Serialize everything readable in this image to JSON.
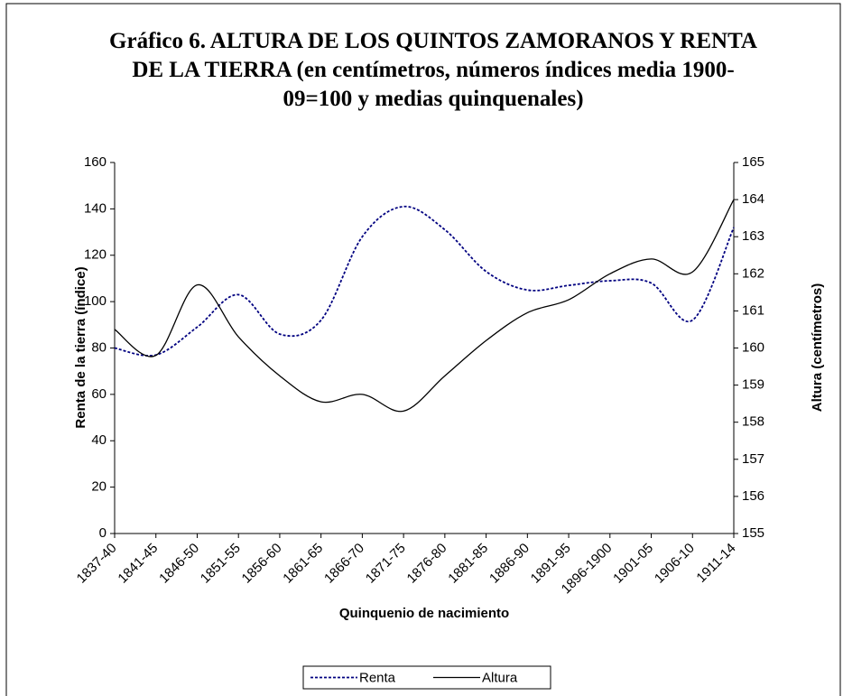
{
  "chart_data": {
    "type": "line",
    "title": "Gráfico 6. ALTURA DE LOS QUINTOS ZAMORANOS Y RENTA DE LA TIERRA (en centímetros, números índices media 1900-09=100 y medias quinquenales)",
    "xlabel": "Quinquenio de nacimiento",
    "ylabel": "Renta de la tierra (índice)",
    "y2label": "Altura (centímetros)",
    "categories": [
      "1837-40",
      "1841-45",
      "1846-50",
      "1851-55",
      "1856-60",
      "1861-65",
      "1866-70",
      "1871-75",
      "1876-80",
      "1881-85",
      "1886-90",
      "1891-95",
      "1896-1900",
      "1901-05",
      "1906-10",
      "1911-14"
    ],
    "series": [
      {
        "name": "Renta",
        "color": "#000080",
        "dash": true,
        "values": [
          80,
          77,
          89,
          103,
          86,
          92,
          128,
          141,
          131,
          113,
          105,
          107,
          109,
          108,
          92,
          132
        ]
      },
      {
        "name": "Altura",
        "color": "#000000",
        "axis": "y2",
        "values": [
          160.5,
          159.8,
          161.7,
          160.3,
          159.25,
          158.55,
          158.75,
          158.3,
          159.25,
          160.2,
          160.95,
          161.3,
          162.0,
          162.4,
          162.05,
          164.0
        ]
      }
    ],
    "ylim": [
      0,
      160
    ],
    "yticks": [
      0,
      20,
      40,
      60,
      80,
      100,
      120,
      140,
      160
    ],
    "y2lim": [
      155,
      165
    ],
    "y2ticks": [
      155,
      156,
      157,
      158,
      159,
      160,
      161,
      162,
      163,
      164,
      165
    ],
    "grid": false,
    "legend": "bottom"
  }
}
